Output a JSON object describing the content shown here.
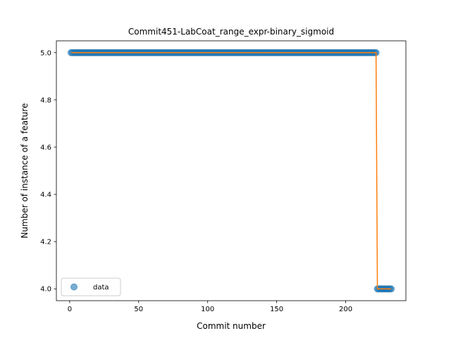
{
  "chart_data": {
    "type": "scatter",
    "title": "Commit451-LabCoat_range_expr-binary_sigmoid",
    "xlabel": "Commit number",
    "ylabel": "Number of instance of a feature",
    "xlim": [
      -9.65,
      243.65
    ],
    "ylim": [
      3.95,
      5.05
    ],
    "xticks": [
      0,
      50,
      100,
      150,
      200
    ],
    "yticks": [
      4.0,
      4.2,
      4.4,
      4.6,
      4.8,
      5.0
    ],
    "ytick_labels": [
      "4.0",
      "4.2",
      "4.4",
      "4.6",
      "4.8",
      "5.0"
    ],
    "grid": false,
    "legend": {
      "placement": "lower-left",
      "entries": [
        "data"
      ]
    },
    "series": [
      {
        "name": "data",
        "kind": "scatter",
        "color": "#1f77b4",
        "alpha": 0.6,
        "segments": [
          {
            "x_start": 1,
            "x_end": 222,
            "y": 5
          },
          {
            "x_start": 223,
            "x_end": 233,
            "y": 4
          }
        ]
      },
      {
        "kind": "line",
        "color": "#ff7f0e",
        "points": [
          {
            "x": 1,
            "y": 5
          },
          {
            "x": 222,
            "y": 5
          },
          {
            "x": 223,
            "y": 4
          },
          {
            "x": 233,
            "y": 4
          }
        ]
      }
    ]
  }
}
